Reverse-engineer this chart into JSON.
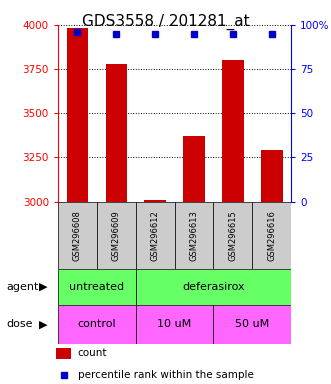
{
  "title": "GDS3558 / 201281_at",
  "samples": [
    "GSM296608",
    "GSM296609",
    "GSM296612",
    "GSM296613",
    "GSM296615",
    "GSM296616"
  ],
  "bar_values": [
    3980,
    3780,
    3010,
    3370,
    3800,
    3290
  ],
  "percentile_values": [
    96,
    95,
    95,
    95,
    95,
    95
  ],
  "ylim_left": [
    3000,
    4000
  ],
  "ylim_right": [
    0,
    100
  ],
  "yticks_left": [
    3000,
    3250,
    3500,
    3750,
    4000
  ],
  "yticks_right": [
    0,
    25,
    50,
    75,
    100
  ],
  "bar_color": "#cc0000",
  "percentile_color": "#0000cc",
  "agent_labels": [
    [
      "untreated",
      0,
      2
    ],
    [
      "deferasirox",
      2,
      6
    ]
  ],
  "dose_labels": [
    [
      "control",
      0,
      2
    ],
    [
      "10 uM",
      2,
      4
    ],
    [
      "50 uM",
      4,
      6
    ]
  ],
  "agent_color": "#66ff66",
  "dose_color": "#ff66ff",
  "agent_row_label": "agent",
  "dose_row_label": "dose",
  "legend_count_label": "count",
  "legend_percentile_label": "percentile rank within the sample",
  "background_color": "#ffffff",
  "label_area_color": "#cccccc",
  "title_fontsize": 11,
  "tick_fontsize": 7.5,
  "sample_fontsize": 6,
  "row_label_fontsize": 8,
  "row_text_fontsize": 8,
  "legend_fontsize": 7.5
}
